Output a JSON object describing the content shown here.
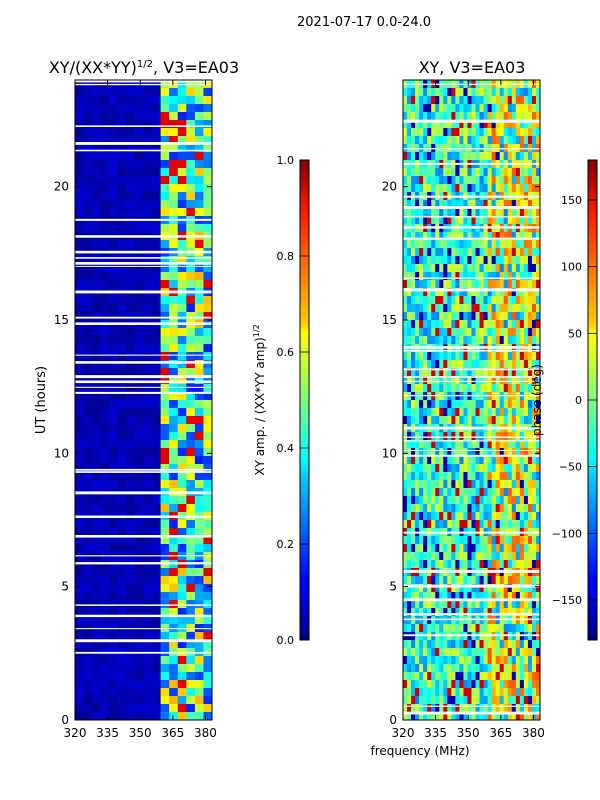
{
  "figure": {
    "suptitle": "2021-07-17 0.0-24.0",
    "xlabel": "frequency (MHz)"
  },
  "chart_data": [
    {
      "type": "heatmap",
      "title": "XY/(XX*YY)",
      "title_sup": "1/2",
      "title_rest": ", V3=EA03",
      "xlabel": "",
      "ylabel": "UT (hours)",
      "x": {
        "ticks": [
          320,
          335,
          350,
          365,
          380
        ],
        "tick_labels": [
          "320",
          "335",
          "350",
          "365",
          "380"
        ],
        "lim": [
          320,
          383
        ]
      },
      "y": {
        "ticks": [
          0,
          5,
          10,
          15,
          20
        ],
        "tick_labels": [
          "0",
          "5",
          "10",
          "15",
          "20"
        ],
        "lim": [
          0,
          24
        ]
      },
      "colorbar": {
        "label": "XY amp. / (XX*YY amp)",
        "label_sup": "1/2",
        "range": [
          0.0,
          1.0
        ],
        "ticks": [
          0.0,
          0.2,
          0.4,
          0.6,
          0.8,
          1.0
        ],
        "tick_labels": [
          "0.0",
          "0.2",
          "0.4",
          "0.6",
          "0.8",
          "1.0"
        ],
        "colormap": "jet"
      }
    },
    {
      "type": "heatmap",
      "title": "XY, V3=EA03",
      "xlabel": "frequency (MHz)",
      "ylabel": "",
      "x": {
        "ticks": [
          320,
          335,
          350,
          365,
          380
        ],
        "tick_labels": [
          "320",
          "335",
          "350",
          "365",
          "380"
        ],
        "lim": [
          320,
          383
        ]
      },
      "y": {
        "ticks": [
          0,
          5,
          10,
          15,
          20
        ],
        "tick_labels": [
          "0",
          "5",
          "10",
          "15",
          "20"
        ],
        "lim": [
          0,
          24
        ]
      },
      "colorbar": {
        "label": "phase (deg)",
        "range": [
          -180,
          180
        ],
        "ticks": [
          -150,
          -100,
          -50,
          0,
          50,
          100,
          150
        ],
        "tick_labels": [
          "−150",
          "−100",
          "−50",
          "0",
          "50",
          "100",
          "150"
        ],
        "colormap": "jet"
      }
    }
  ]
}
